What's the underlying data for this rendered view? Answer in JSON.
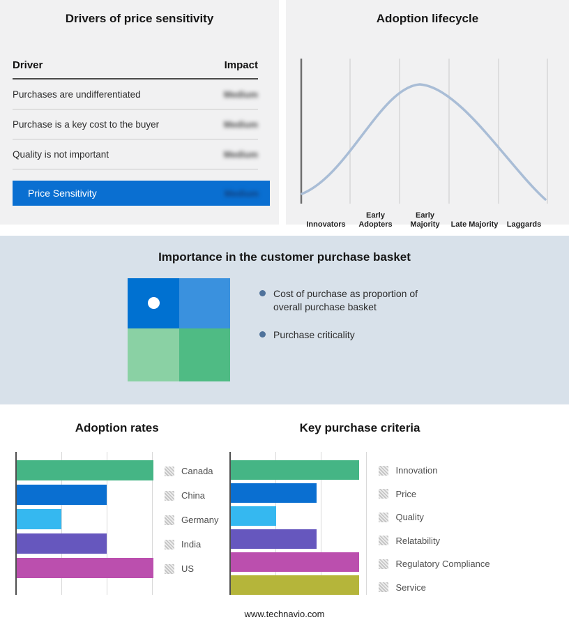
{
  "drivers": {
    "title": "Drivers of price sensitivity",
    "columns": {
      "driver": "Driver",
      "impact": "Impact"
    },
    "rows": [
      {
        "driver": "Purchases are undifferentiated",
        "impact": "Medium"
      },
      {
        "driver": "Purchase is a key cost to the buyer",
        "impact": "Medium"
      },
      {
        "driver": "Quality is not important",
        "impact": "Medium"
      }
    ],
    "summary": {
      "label": "Price Sensitivity",
      "impact": "Medium"
    },
    "accent_color": "#0a6fd1"
  },
  "lifecycle": {
    "title": "Adoption lifecycle",
    "stages": [
      "Innovators",
      "Early Adopters",
      "Early Majority",
      "Late Majority",
      "Laggards"
    ],
    "curve_color": "#a9bdd6"
  },
  "basket": {
    "title": "Importance in the customer purchase basket",
    "bullets": [
      "Cost of purchase as proportion of overall purchase basket",
      "Purchase criticality"
    ],
    "bullet_color": "#4f729b",
    "band_color": "#d8e1ea",
    "quadrant_colors": [
      "#0071d1",
      "#3a91de",
      "#8ad1a4",
      "#4fbb84"
    ]
  },
  "footer": {
    "url": "www.technavio.com"
  },
  "chart_data": [
    {
      "type": "line",
      "title": "Adoption lifecycle",
      "categories": [
        "Innovators",
        "Early Adopters",
        "Early Majority",
        "Late Majority",
        "Laggards"
      ],
      "values": [
        10,
        55,
        100,
        55,
        8
      ],
      "xlabel": "",
      "ylabel": "",
      "grid": "vertical",
      "legend_position": "none",
      "note": "Unlabeled bell-shaped adoption curve peaking at Early Majority"
    },
    {
      "type": "bar",
      "orientation": "horizontal",
      "title": "Adoption rates",
      "categories": [
        "Canada",
        "China",
        "Germany",
        "India",
        "US"
      ],
      "values": [
        3.05,
        2.0,
        1.0,
        2.0,
        3.05
      ],
      "xmax": 3.08,
      "colors": [
        "#45b585",
        "#0a6fd1",
        "#35b8f0",
        "#6657be",
        "#bb4fae"
      ],
      "note": "Axis unlabeled; values estimated in gridline units"
    },
    {
      "type": "bar",
      "orientation": "horizontal",
      "title": "Key purchase criteria",
      "categories": [
        "Innovation",
        "Price",
        "Quality",
        "Relatability",
        "Regulatory Compliance",
        "Service"
      ],
      "values": [
        2.85,
        1.9,
        1.0,
        1.9,
        2.85,
        2.85
      ],
      "xmax": 3.08,
      "colors": [
        "#45b585",
        "#0a6fd1",
        "#35b8f0",
        "#6657be",
        "#bb4fae",
        "#b5b53a"
      ],
      "note": "Axis unlabeled; values estimated in gridline units"
    }
  ]
}
